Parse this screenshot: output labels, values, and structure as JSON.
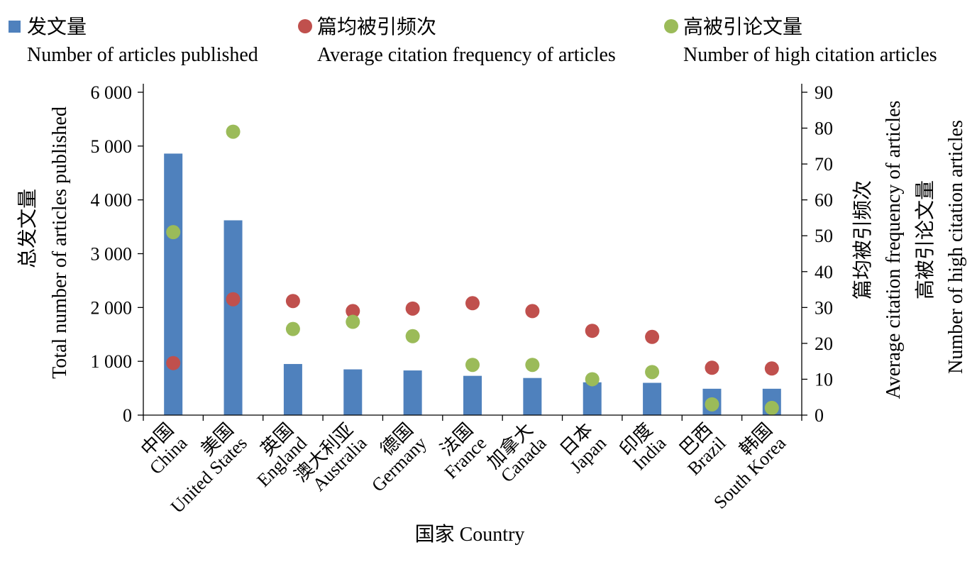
{
  "chart_data": {
    "type": "bar",
    "categories": [
      [
        "中国",
        "China"
      ],
      [
        "美国",
        "United States"
      ],
      [
        "英国",
        "England"
      ],
      [
        "澳大利亚",
        "Australia"
      ],
      [
        "德国",
        "Germany"
      ],
      [
        "法国",
        "France"
      ],
      [
        "加拿大",
        "Canada"
      ],
      [
        "日本",
        "Japan"
      ],
      [
        "印度",
        "India"
      ],
      [
        "巴西",
        "Brazil"
      ],
      [
        "韩国",
        "South Korea"
      ]
    ],
    "series": [
      {
        "name_cn": "发文量",
        "name_en": "Number of articles published",
        "type": "bar",
        "axis": "left",
        "color": "#4f81bd",
        "values": [
          4860,
          3620,
          950,
          850,
          830,
          730,
          690,
          610,
          600,
          490,
          490
        ]
      },
      {
        "name_cn": "篇均被引频次",
        "name_en": "Average citation frequency of articles",
        "type": "scatter",
        "axis": "right",
        "color": "#c0504d",
        "values": [
          14.5,
          32.3,
          31.8,
          29.0,
          29.7,
          31.2,
          29.0,
          23.5,
          21.8,
          13.2,
          13.0
        ]
      },
      {
        "name_cn": "高被引论文量",
        "name_en": "Number of high citation articles",
        "type": "scatter",
        "axis": "right",
        "color": "#9bbb59",
        "values": [
          51,
          79,
          24,
          26,
          22,
          14,
          14,
          10,
          12,
          3,
          2
        ]
      }
    ],
    "xlabel": "国家  Country",
    "ylabel_left": [
      "总发文量",
      "Total number of articles published"
    ],
    "ylabel_right": [
      "篇均被引频次",
      "Average citation frequency of articles",
      "高被引论文量",
      "Number of high citation articles"
    ],
    "ylim_left": [
      0,
      6000
    ],
    "yticks_left": [
      "0",
      "1 000",
      "2 000",
      "3 000",
      "4 000",
      "5 000",
      "6 000"
    ],
    "ylim_right": [
      0,
      90
    ],
    "yticks_right": [
      "0",
      "10",
      "20",
      "30",
      "40",
      "50",
      "60",
      "70",
      "80",
      "90"
    ],
    "legend_position": "top",
    "grid": false
  }
}
